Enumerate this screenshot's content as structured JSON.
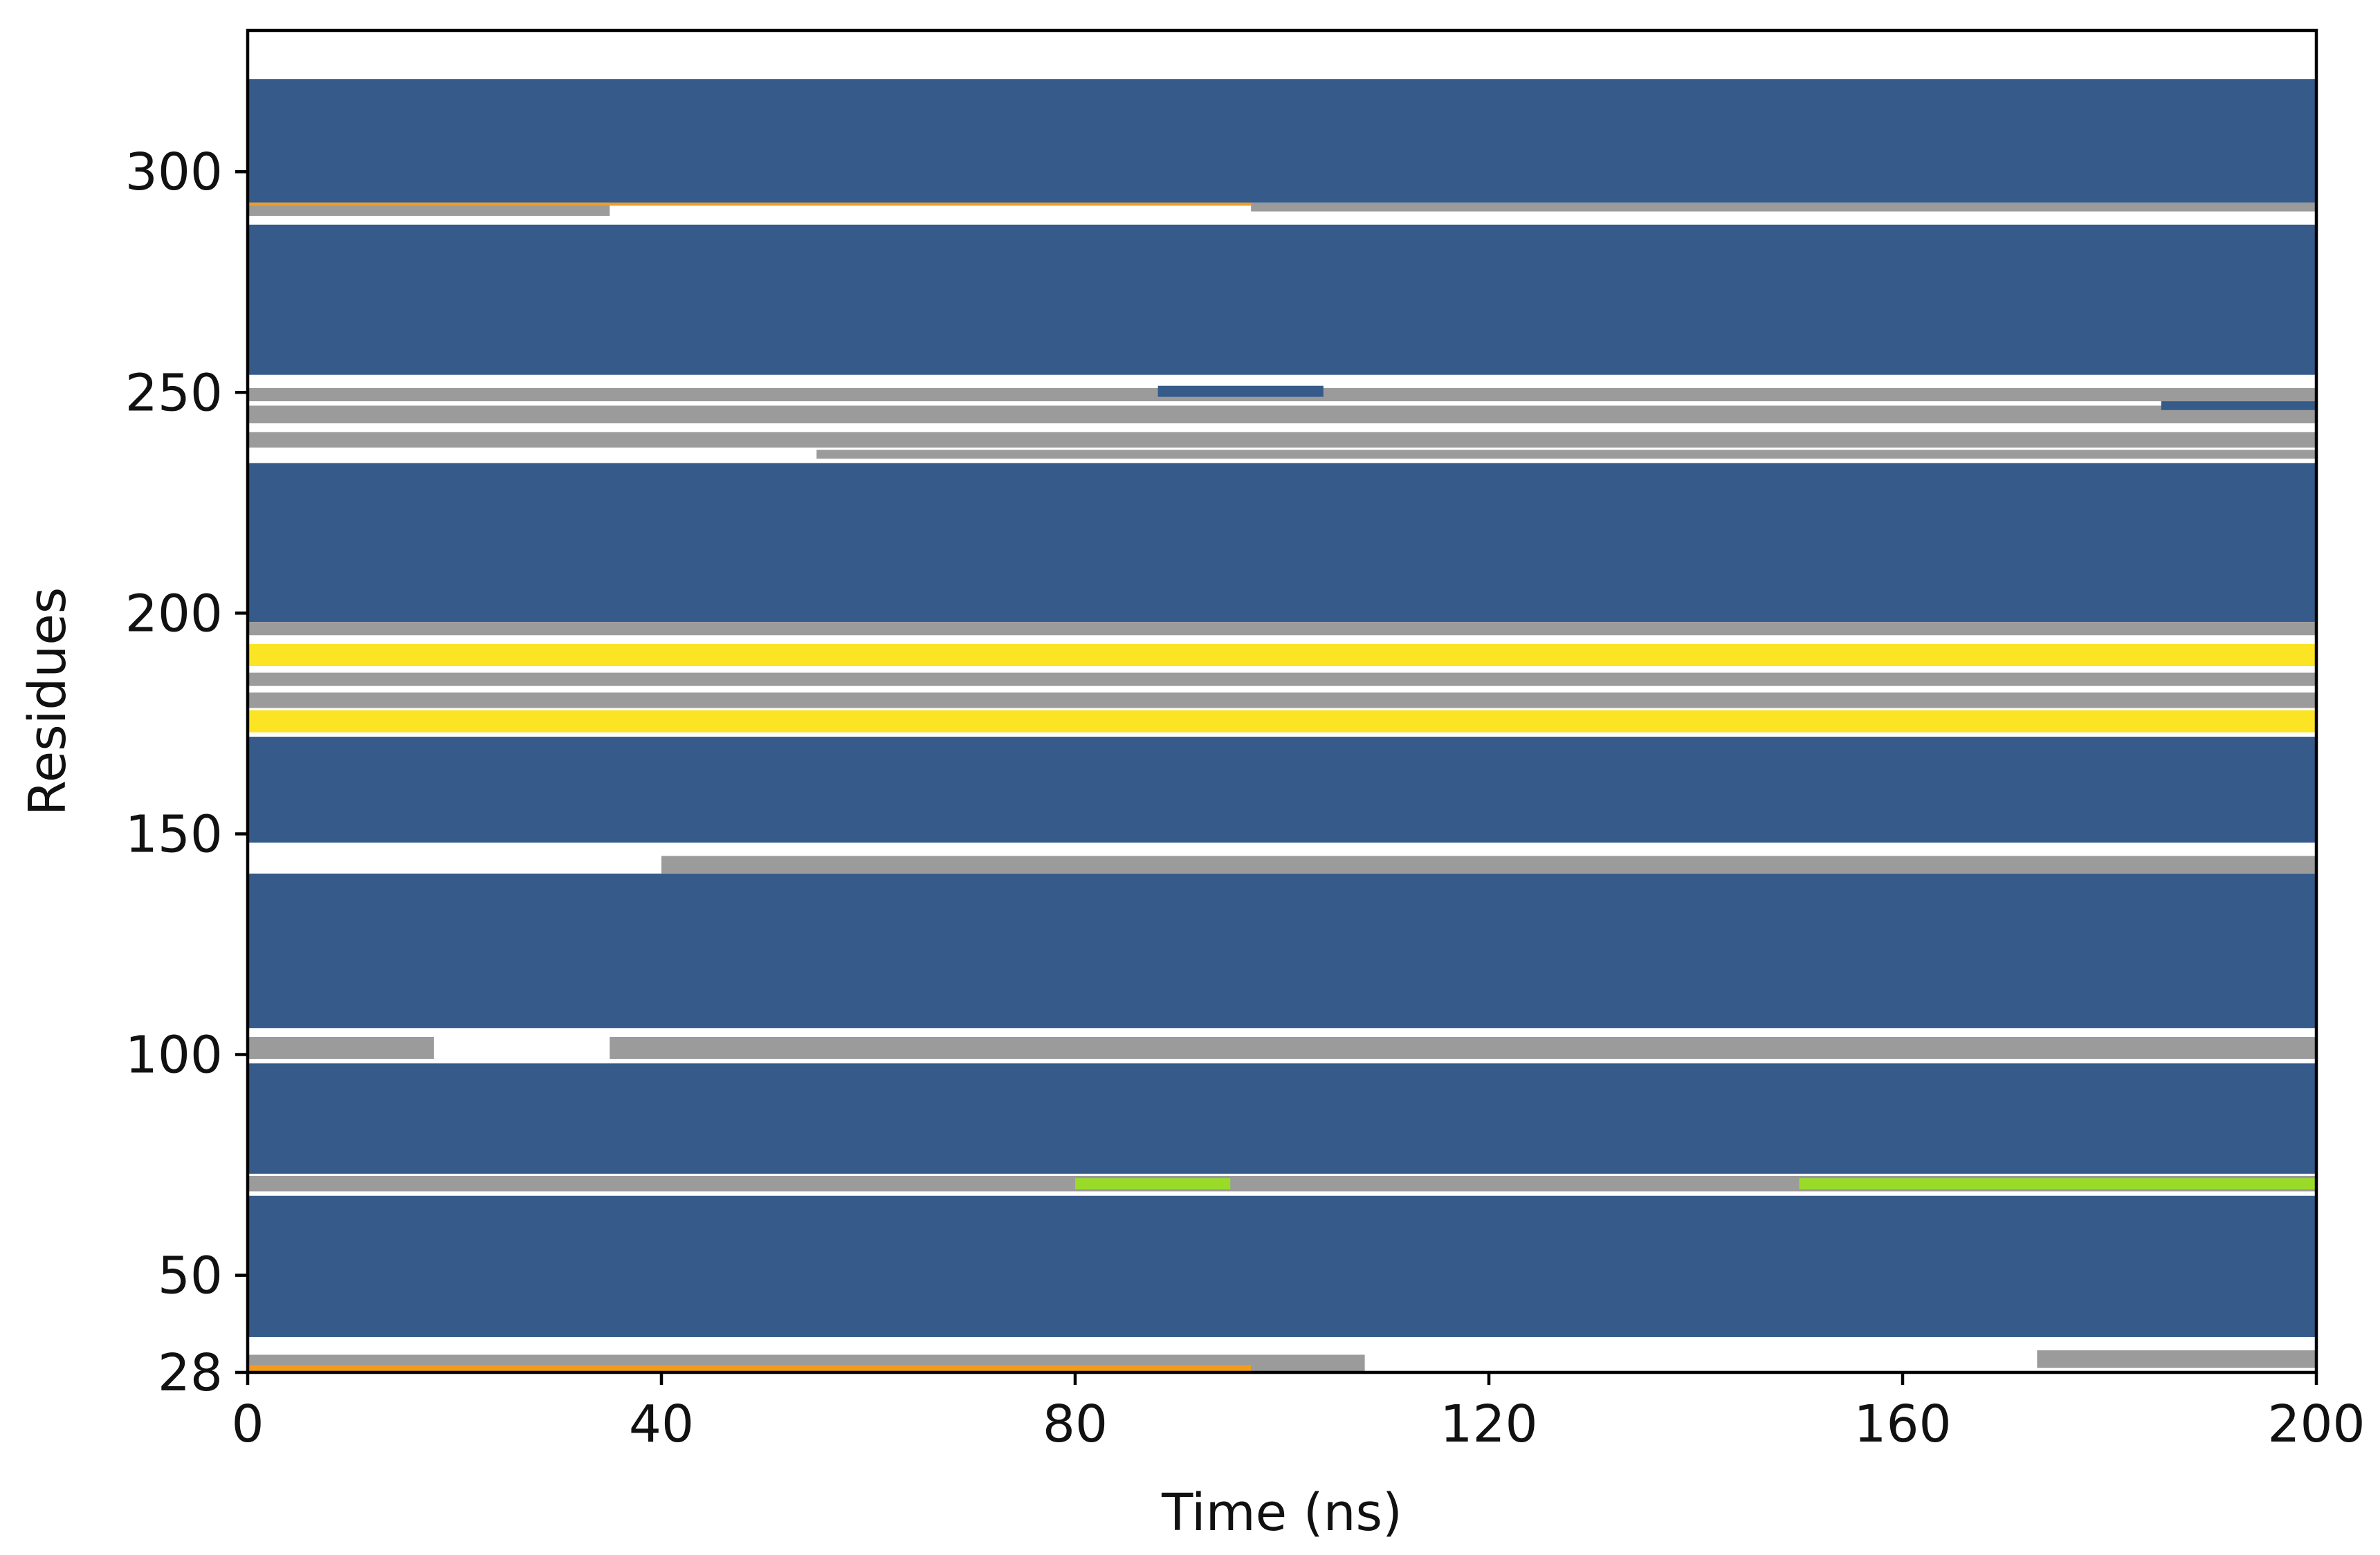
{
  "chart_data": {
    "type": "heatmap",
    "title": "",
    "xlabel": "Time (ns)",
    "ylabel": "Residues",
    "xlim": [
      0,
      200
    ],
    "ylim": [
      28,
      332
    ],
    "x_ticks": [
      "0",
      "40",
      "80",
      "120",
      "160",
      "200"
    ],
    "y_ticks": [
      "28",
      "50",
      "100",
      "150",
      "200",
      "250",
      "300"
    ],
    "grid": false,
    "legend": "none",
    "colors": {
      "helix": "#365B8A",
      "turn": "#9B9B9B",
      "coil": "#FFFFFF",
      "beta_sheet": "#FBE424",
      "three_ten_helix": "#9ADB2A",
      "bridge": "#F39C1C"
    },
    "segments": [
      {
        "state": "helix",
        "res": [
          34,
          321
        ],
        "t": [
          0,
          200
        ]
      },
      {
        "state": "coil",
        "res": [
          321.5,
          322.8
        ],
        "t": [
          0,
          200
        ]
      },
      {
        "state": "coil",
        "res": [
          288,
          293
        ],
        "t": [
          0,
          200
        ]
      },
      {
        "state": "turn",
        "res": [
          290,
          293
        ],
        "t": [
          0,
          35
        ]
      },
      {
        "state": "bridge",
        "res": [
          292.3,
          293
        ],
        "t": [
          0,
          97
        ]
      },
      {
        "state": "turn",
        "res": [
          291,
          293
        ],
        "t": [
          97,
          200
        ]
      },
      {
        "state": "coil",
        "res": [
          234,
          254
        ],
        "t": [
          0,
          200
        ]
      },
      {
        "state": "turn",
        "res": [
          248,
          251
        ],
        "t": [
          0,
          200
        ]
      },
      {
        "state": "turn",
        "res": [
          243,
          247
        ],
        "t": [
          0,
          200
        ]
      },
      {
        "state": "turn",
        "res": [
          237.5,
          241
        ],
        "t": [
          0,
          200
        ]
      },
      {
        "state": "turn",
        "res": [
          235,
          237
        ],
        "t": [
          55,
          200
        ]
      },
      {
        "state": "helix",
        "res": [
          249,
          251.5
        ],
        "t": [
          88,
          104
        ]
      },
      {
        "state": "helix",
        "res": [
          246,
          248
        ],
        "t": [
          185,
          200
        ]
      },
      {
        "state": "coil",
        "res": [
          172,
          198
        ],
        "t": [
          0,
          200
        ]
      },
      {
        "state": "turn",
        "res": [
          195,
          198
        ],
        "t": [
          0,
          200
        ]
      },
      {
        "state": "beta_sheet",
        "res": [
          188,
          193
        ],
        "t": [
          0,
          200
        ]
      },
      {
        "state": "turn",
        "res": [
          183.5,
          186.5
        ],
        "t": [
          0,
          200
        ]
      },
      {
        "state": "turn",
        "res": [
          178.5,
          182
        ],
        "t": [
          0,
          200
        ]
      },
      {
        "state": "beta_sheet",
        "res": [
          173,
          178
        ],
        "t": [
          0,
          200
        ]
      },
      {
        "state": "coil",
        "res": [
          141,
          148
        ],
        "t": [
          0,
          200
        ]
      },
      {
        "state": "turn",
        "res": [
          141,
          145
        ],
        "t": [
          40,
          200
        ]
      },
      {
        "state": "coil",
        "res": [
          98,
          106
        ],
        "t": [
          0,
          200
        ]
      },
      {
        "state": "turn",
        "res": [
          99,
          104
        ],
        "t": [
          0,
          200
        ]
      },
      {
        "state": "coil",
        "res": [
          99,
          104
        ],
        "t": [
          18,
          35
        ]
      },
      {
        "state": "coil",
        "res": [
          68,
          73
        ],
        "t": [
          0,
          200
        ]
      },
      {
        "state": "turn",
        "res": [
          69,
          72.5
        ],
        "t": [
          0,
          200
        ]
      },
      {
        "state": "three_ten_helix",
        "res": [
          69.5,
          72
        ],
        "t": [
          80,
          95
        ]
      },
      {
        "state": "three_ten_helix",
        "res": [
          69.5,
          72
        ],
        "t": [
          150,
          200
        ]
      },
      {
        "state": "coil",
        "res": [
          28,
          36
        ],
        "t": [
          0,
          200
        ]
      },
      {
        "state": "turn",
        "res": [
          28,
          32
        ],
        "t": [
          0,
          108
        ]
      },
      {
        "state": "bridge",
        "res": [
          28.3,
          29.6
        ],
        "t": [
          0,
          97
        ]
      },
      {
        "state": "turn",
        "res": [
          29,
          33
        ],
        "t": [
          173,
          200
        ]
      }
    ]
  }
}
